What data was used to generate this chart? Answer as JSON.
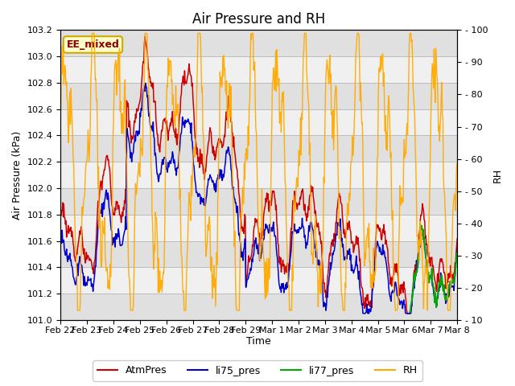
{
  "title": "Air Pressure and RH",
  "xlabel": "Time",
  "ylabel_left": "Air Pressure (kPa)",
  "ylabel_right": "RH",
  "annotation": "EE_mixed",
  "ylim_left": [
    101.0,
    103.2
  ],
  "ylim_right": [
    10,
    100
  ],
  "yticks_left": [
    101.0,
    101.2,
    101.4,
    101.6,
    101.8,
    102.0,
    102.2,
    102.4,
    102.6,
    102.8,
    103.0,
    103.2
  ],
  "yticks_right": [
    10,
    20,
    30,
    40,
    50,
    60,
    70,
    80,
    90,
    100
  ],
  "background_color": "#ffffff",
  "plot_bg_color_light": "#f0f0f0",
  "plot_bg_color_dark": "#e0e0e0",
  "line_colors": {
    "AtmPres": "#cc0000",
    "li75_pres": "#0000cc",
    "li77_pres": "#00aa00",
    "RH": "#ffaa00"
  },
  "legend_labels": [
    "AtmPres",
    "li75_pres",
    "li77_pres",
    "RH"
  ],
  "x_tick_labels": [
    "Feb 22",
    "Feb 23",
    "Feb 24",
    "Feb 25",
    "Feb 26",
    "Feb 27",
    "Feb 28",
    "Feb 29",
    "Mar 1",
    "Mar 2",
    "Mar 3",
    "Mar 4",
    "Mar 5",
    "Mar 6",
    "Mar 7",
    "Mar 8"
  ],
  "grid_color": "#bbbbbb",
  "title_fontsize": 12,
  "axis_label_fontsize": 9,
  "tick_fontsize": 8,
  "legend_fontsize": 9,
  "annotation_facecolor": "#ffffcc",
  "annotation_edgecolor": "#ccaa00",
  "annotation_textcolor": "#8B0000"
}
